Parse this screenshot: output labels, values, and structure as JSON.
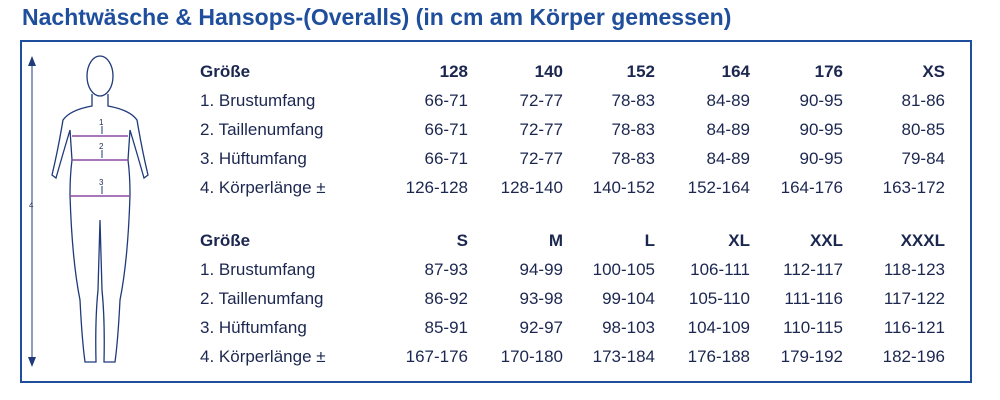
{
  "title": "Nachtwäsche & Hansops-(Overalls) (in cm am Körper gemessen)",
  "figure": {
    "labels": [
      "1",
      "2",
      "3",
      "4"
    ]
  },
  "tables": [
    {
      "header": [
        "Größe",
        "128",
        "140",
        "152",
        "164",
        "176",
        "XS"
      ],
      "rows": [
        [
          "1. Brustumfang",
          "66-71",
          "72-77",
          "78-83",
          "84-89",
          "90-95",
          "81-86"
        ],
        [
          "2. Taillenumfang",
          "66-71",
          "72-77",
          "78-83",
          "84-89",
          "90-95",
          "80-85"
        ],
        [
          "3. Hüftumfang",
          "66-71",
          "72-77",
          "78-83",
          "84-89",
          "90-95",
          "79-84"
        ],
        [
          "4. Körperlänge ±",
          "126-128",
          "128-140",
          "140-152",
          "152-164",
          "164-176",
          "163-172"
        ]
      ]
    },
    {
      "header": [
        "Größe",
        "S",
        "M",
        "L",
        "XL",
        "XXL",
        "XXXL"
      ],
      "rows": [
        [
          "1. Brustumfang",
          "87-93",
          "94-99",
          "100-105",
          "106-111",
          "112-117",
          "118-123"
        ],
        [
          "2. Taillenumfang",
          "86-92",
          "93-98",
          "99-104",
          "105-110",
          "111-116",
          "117-122"
        ],
        [
          "3. Hüftumfang",
          "85-91",
          "92-97",
          "98-103",
          "104-109",
          "110-115",
          "116-121"
        ],
        [
          "4. Körperlänge ±",
          "167-176",
          "170-180",
          "173-184",
          "176-188",
          "179-192",
          "182-196"
        ]
      ]
    }
  ]
}
